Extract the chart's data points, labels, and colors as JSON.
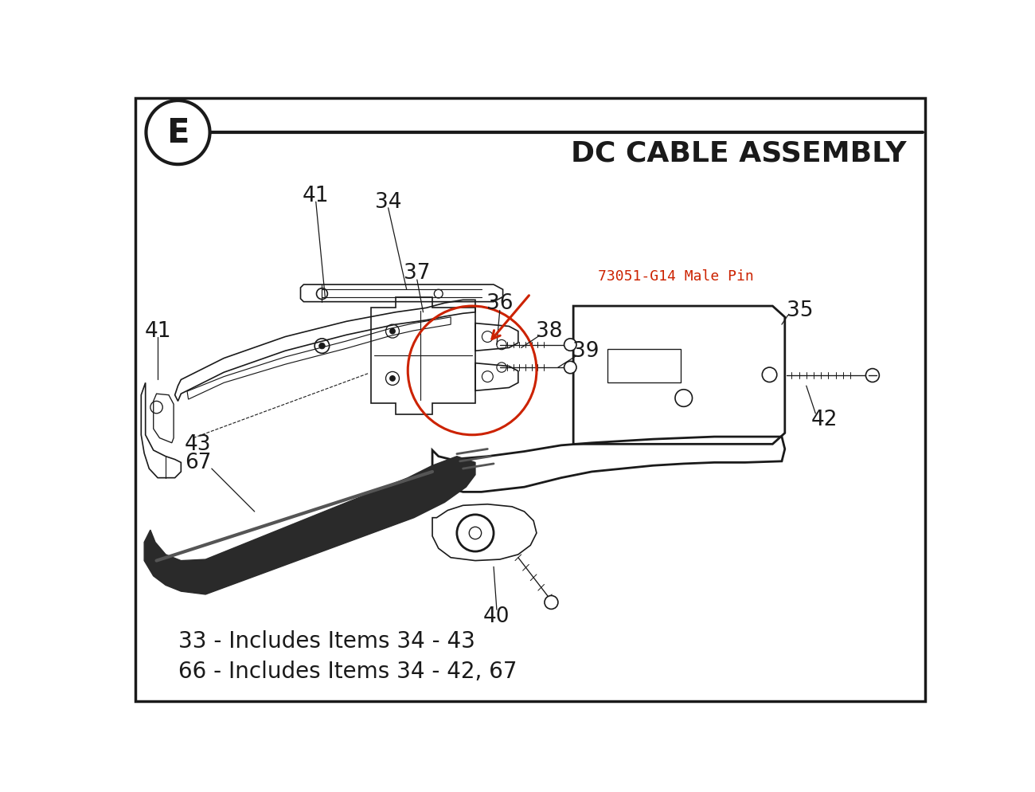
{
  "title": "DC CABLE ASSEMBLY",
  "bg": "#ffffff",
  "black": "#1a1a1a",
  "red": "#cc2200",
  "diagram_label": "E",
  "footnote1": "33 - Includes Items 34 - 43",
  "footnote2": "66 - Includes Items 34 - 42, 67",
  "red_label": "73051-G14 Male Pin",
  "title_fontsize": 26,
  "label_fontsize": 19,
  "mono_fontsize": 12,
  "footnote_fontsize": 20
}
